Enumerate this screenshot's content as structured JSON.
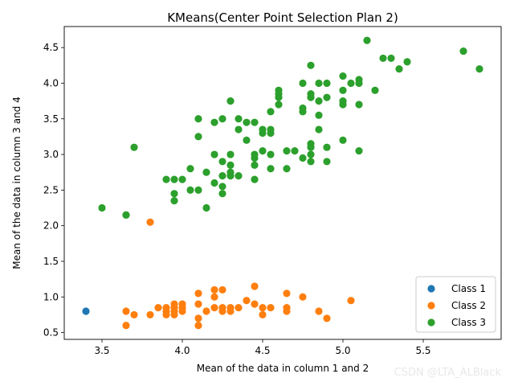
{
  "watermark": "CSDN @LTA_ALBlack",
  "chart_data": {
    "type": "scatter",
    "title": "KMeans(Center Point Selection Plan 2)",
    "xlabel": "Mean of the data in column 1 and 2",
    "ylabel": "Mean of the data in column 3 and 4",
    "xlim": [
      3.265,
      5.985
    ],
    "ylim": [
      0.405,
      4.795
    ],
    "xticks": [
      3.5,
      4.0,
      4.5,
      5.0,
      5.5
    ],
    "xtick_labels": [
      "3.5",
      "4.0",
      "4.5",
      "5.0",
      "5.5"
    ],
    "yticks": [
      0.5,
      1.0,
      1.5,
      2.0,
      2.5,
      3.0,
      3.5,
      4.0,
      4.5
    ],
    "ytick_labels": [
      "0.5",
      "1.0",
      "1.5",
      "2.0",
      "2.5",
      "3.0",
      "3.5",
      "4.0",
      "4.5"
    ],
    "legend_position": "lower-right",
    "series": [
      {
        "name": "Class 1",
        "color": "#1f77b4",
        "points": [
          [
            3.4,
            0.8
          ]
        ]
      },
      {
        "name": "Class 2",
        "color": "#ff7f0e",
        "points": [
          [
            3.65,
            0.8
          ],
          [
            3.65,
            0.6
          ],
          [
            3.7,
            0.75
          ],
          [
            3.8,
            2.05
          ],
          [
            3.8,
            0.75
          ],
          [
            3.85,
            0.85
          ],
          [
            3.9,
            0.85
          ],
          [
            3.9,
            0.8
          ],
          [
            3.9,
            0.75
          ],
          [
            3.95,
            0.9
          ],
          [
            3.95,
            0.85
          ],
          [
            3.95,
            0.8
          ],
          [
            3.95,
            0.75
          ],
          [
            4.0,
            0.9
          ],
          [
            4.0,
            0.85
          ],
          [
            4.0,
            0.8
          ],
          [
            4.1,
            1.05
          ],
          [
            4.1,
            0.9
          ],
          [
            4.1,
            0.7
          ],
          [
            4.1,
            0.6
          ],
          [
            4.15,
            0.8
          ],
          [
            4.2,
            1.1
          ],
          [
            4.2,
            1.0
          ],
          [
            4.2,
            0.85
          ],
          [
            4.25,
            1.1
          ],
          [
            4.25,
            0.85
          ],
          [
            4.25,
            0.8
          ],
          [
            4.3,
            0.85
          ],
          [
            4.3,
            0.8
          ],
          [
            4.35,
            0.85
          ],
          [
            4.4,
            0.95
          ],
          [
            4.45,
            1.15
          ],
          [
            4.45,
            0.9
          ],
          [
            4.5,
            0.85
          ],
          [
            4.5,
            0.75
          ],
          [
            4.55,
            0.85
          ],
          [
            4.65,
            1.05
          ],
          [
            4.65,
            0.85
          ],
          [
            4.65,
            0.8
          ],
          [
            4.75,
            1.0
          ],
          [
            4.85,
            0.8
          ],
          [
            4.9,
            0.7
          ],
          [
            5.05,
            0.95
          ]
        ]
      },
      {
        "name": "Class 3",
        "color": "#2ca02c",
        "points": [
          [
            3.5,
            2.25
          ],
          [
            3.65,
            2.15
          ],
          [
            3.65,
            2.15
          ],
          [
            3.7,
            3.1
          ],
          [
            3.9,
            2.65
          ],
          [
            3.95,
            2.65
          ],
          [
            3.95,
            2.45
          ],
          [
            3.95,
            2.35
          ],
          [
            4.0,
            2.65
          ],
          [
            4.05,
            2.8
          ],
          [
            4.05,
            2.5
          ],
          [
            4.1,
            3.5
          ],
          [
            4.1,
            3.25
          ],
          [
            4.1,
            2.5
          ],
          [
            4.15,
            2.75
          ],
          [
            4.15,
            2.25
          ],
          [
            4.2,
            3.45
          ],
          [
            4.2,
            3.0
          ],
          [
            4.2,
            2.6
          ],
          [
            4.25,
            3.5
          ],
          [
            4.25,
            2.9
          ],
          [
            4.25,
            2.7
          ],
          [
            4.25,
            2.55
          ],
          [
            4.25,
            2.45
          ],
          [
            4.3,
            3.75
          ],
          [
            4.3,
            3.0
          ],
          [
            4.3,
            2.85
          ],
          [
            4.3,
            2.75
          ],
          [
            4.3,
            2.7
          ],
          [
            4.35,
            3.5
          ],
          [
            4.35,
            3.35
          ],
          [
            4.35,
            2.7
          ],
          [
            4.4,
            3.45
          ],
          [
            4.4,
            3.2
          ],
          [
            4.45,
            3.45
          ],
          [
            4.45,
            3.0
          ],
          [
            4.45,
            2.95
          ],
          [
            4.45,
            2.85
          ],
          [
            4.45,
            2.65
          ],
          [
            4.5,
            3.35
          ],
          [
            4.5,
            3.3
          ],
          [
            4.5,
            3.05
          ],
          [
            4.55,
            3.6
          ],
          [
            4.55,
            3.35
          ],
          [
            4.55,
            3.3
          ],
          [
            4.55,
            3.0
          ],
          [
            4.55,
            2.8
          ],
          [
            4.6,
            3.9
          ],
          [
            4.6,
            3.85
          ],
          [
            4.6,
            3.8
          ],
          [
            4.6,
            3.7
          ],
          [
            4.65,
            3.05
          ],
          [
            4.65,
            2.8
          ],
          [
            4.7,
            3.05
          ],
          [
            4.75,
            4.0
          ],
          [
            4.75,
            3.65
          ],
          [
            4.75,
            3.6
          ],
          [
            4.75,
            2.95
          ],
          [
            4.8,
            4.25
          ],
          [
            4.8,
            3.85
          ],
          [
            4.8,
            3.8
          ],
          [
            4.8,
            3.15
          ],
          [
            4.8,
            3.1
          ],
          [
            4.8,
            3.0
          ],
          [
            4.8,
            2.9
          ],
          [
            4.85,
            4.0
          ],
          [
            4.85,
            3.75
          ],
          [
            4.85,
            3.55
          ],
          [
            4.85,
            3.35
          ],
          [
            4.9,
            4.0
          ],
          [
            4.9,
            3.8
          ],
          [
            4.9,
            3.1
          ],
          [
            4.9,
            2.9
          ],
          [
            5.0,
            4.1
          ],
          [
            5.0,
            3.9
          ],
          [
            5.0,
            3.75
          ],
          [
            5.0,
            3.7
          ],
          [
            5.0,
            3.2
          ],
          [
            5.05,
            4.0
          ],
          [
            5.1,
            4.05
          ],
          [
            5.1,
            4.0
          ],
          [
            5.1,
            3.7
          ],
          [
            5.1,
            3.05
          ],
          [
            5.15,
            4.6
          ],
          [
            5.2,
            3.9
          ],
          [
            5.25,
            4.35
          ],
          [
            5.3,
            4.35
          ],
          [
            5.35,
            4.2
          ],
          [
            5.4,
            4.3
          ],
          [
            5.75,
            4.45
          ],
          [
            5.85,
            4.2
          ]
        ]
      }
    ]
  }
}
